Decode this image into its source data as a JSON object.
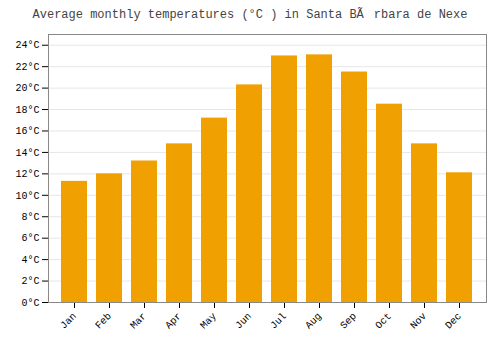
{
  "chart_data": {
    "type": "bar",
    "title": "Average monthly temperatures (°C ) in Santa BÃrbara de Nexe",
    "categories": [
      "Jan",
      "Feb",
      "Mar",
      "Apr",
      "May",
      "Jun",
      "Jul",
      "Aug",
      "Sep",
      "Oct",
      "Nov",
      "Dec"
    ],
    "values": [
      11.3,
      12.0,
      13.2,
      14.8,
      17.2,
      20.3,
      23.0,
      23.1,
      21.5,
      18.5,
      14.8,
      12.1
    ],
    "color": "#F0A000",
    "ylim": [
      0,
      25
    ],
    "yticks": [
      {
        "value": 0,
        "label": "0°C"
      },
      {
        "value": 2,
        "label": "2°C"
      },
      {
        "value": 4,
        "label": "4°C"
      },
      {
        "value": 6,
        "label": "6°C"
      },
      {
        "value": 8,
        "label": "8°C"
      },
      {
        "value": 10,
        "label": "10°C"
      },
      {
        "value": 12,
        "label": "12°C"
      },
      {
        "value": 14,
        "label": "14°C"
      },
      {
        "value": 16,
        "label": "16°C"
      },
      {
        "value": 18,
        "label": "18°C"
      },
      {
        "value": 20,
        "label": "20°C"
      },
      {
        "value": 22,
        "label": "22°C"
      },
      {
        "value": 24,
        "label": "24°C"
      }
    ],
    "grid": true
  }
}
